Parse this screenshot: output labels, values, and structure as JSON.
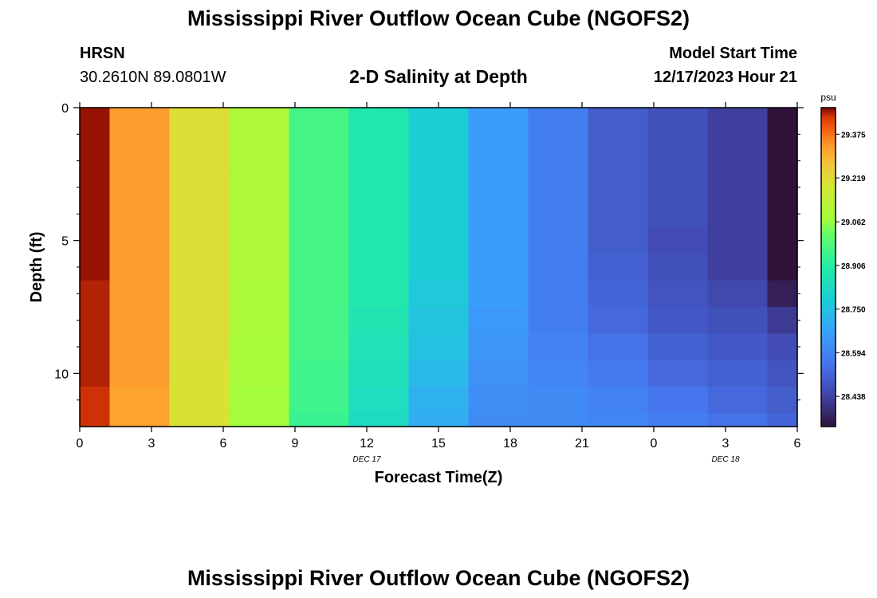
{
  "header": {
    "title": "Mississippi River Outflow Ocean Cube (NGOFS2)",
    "station": "HRSN",
    "coordinates": "30.2610N  89.0801W",
    "subtitle": "2-D Salinity at Depth",
    "model_start_label": "Model Start Time",
    "model_start_value": "12/17/2023 Hour 21"
  },
  "footer": {
    "title": "Mississippi River Outflow Ocean Cube (NGOFS2)"
  },
  "chart_data": {
    "type": "heatmap",
    "xlabel": "Forecast Time(Z)",
    "ylabel": "Depth (ft)",
    "x_range_hours": [
      0,
      30
    ],
    "x_ticks": [
      {
        "hour": 0,
        "label": "0"
      },
      {
        "hour": 3,
        "label": "3"
      },
      {
        "hour": 6,
        "label": "6"
      },
      {
        "hour": 9,
        "label": "9"
      },
      {
        "hour": 12,
        "label": "12"
      },
      {
        "hour": 15,
        "label": "15"
      },
      {
        "hour": 18,
        "label": "18"
      },
      {
        "hour": 21,
        "label": "21"
      },
      {
        "hour": 24,
        "label": "0"
      },
      {
        "hour": 27,
        "label": "3"
      },
      {
        "hour": 30,
        "label": "6"
      }
    ],
    "date_labels": [
      {
        "hour": 12,
        "label": "DEC 17"
      },
      {
        "hour": 27,
        "label": "DEC 18"
      }
    ],
    "y_range": [
      0,
      12
    ],
    "y_ticks": [
      0,
      5,
      10
    ],
    "y_minor_ticks": [
      1,
      2,
      3,
      4,
      6,
      7,
      8,
      9,
      11
    ],
    "time_hours": [
      0,
      2.5,
      5,
      7.5,
      10,
      12.5,
      15,
      17.5,
      20,
      22.5,
      25,
      27.5,
      30
    ],
    "depth_ft": [
      0,
      1,
      2,
      3,
      4,
      5,
      6,
      7,
      8,
      9,
      10,
      11,
      12
    ],
    "values": [
      [
        29.46,
        29.33,
        29.21,
        29.1,
        28.96,
        28.88,
        28.78,
        28.66,
        28.58,
        28.5,
        28.47,
        28.43,
        28.33
      ],
      [
        29.46,
        29.33,
        29.21,
        29.1,
        28.96,
        28.88,
        28.78,
        28.66,
        28.58,
        28.5,
        28.47,
        28.43,
        28.33
      ],
      [
        29.46,
        29.33,
        29.21,
        29.1,
        28.96,
        28.88,
        28.78,
        28.66,
        28.58,
        28.5,
        28.47,
        28.43,
        28.33
      ],
      [
        29.46,
        29.33,
        29.21,
        29.1,
        28.96,
        28.88,
        28.78,
        28.66,
        28.58,
        28.5,
        28.47,
        28.43,
        28.33
      ],
      [
        29.46,
        29.33,
        29.21,
        29.1,
        28.96,
        28.88,
        28.78,
        28.66,
        28.58,
        28.5,
        28.47,
        28.43,
        28.33
      ],
      [
        29.46,
        29.33,
        29.21,
        29.1,
        28.96,
        28.88,
        28.78,
        28.66,
        28.58,
        28.5,
        28.46,
        28.43,
        28.33
      ],
      [
        29.46,
        29.33,
        29.21,
        29.1,
        28.96,
        28.88,
        28.78,
        28.66,
        28.58,
        28.51,
        28.47,
        28.43,
        28.33
      ],
      [
        29.45,
        29.33,
        29.21,
        29.09,
        28.96,
        28.88,
        28.77,
        28.66,
        28.58,
        28.52,
        28.48,
        28.45,
        28.36
      ],
      [
        29.45,
        29.33,
        29.21,
        29.09,
        28.96,
        28.87,
        28.76,
        28.65,
        28.58,
        28.53,
        28.49,
        28.47,
        28.42
      ],
      [
        29.45,
        29.33,
        29.21,
        29.08,
        28.96,
        28.86,
        28.75,
        28.64,
        28.59,
        28.55,
        28.51,
        28.49,
        28.46
      ],
      [
        29.45,
        29.33,
        29.2,
        29.08,
        28.95,
        28.85,
        28.73,
        28.63,
        28.6,
        28.57,
        28.53,
        28.51,
        28.48
      ],
      [
        29.44,
        29.32,
        29.2,
        29.07,
        28.95,
        28.84,
        28.71,
        28.62,
        28.61,
        28.59,
        28.56,
        28.53,
        28.5
      ],
      [
        29.44,
        29.32,
        29.2,
        29.07,
        28.94,
        28.83,
        28.7,
        28.61,
        28.61,
        28.6,
        28.58,
        28.55,
        28.52
      ]
    ],
    "colorbar": {
      "unit": "psu",
      "range": [
        28.33,
        29.47
      ],
      "ticks": [
        "29.375",
        "29.219",
        "29.062",
        "28.906",
        "28.750",
        "28.594",
        "28.438"
      ]
    }
  }
}
